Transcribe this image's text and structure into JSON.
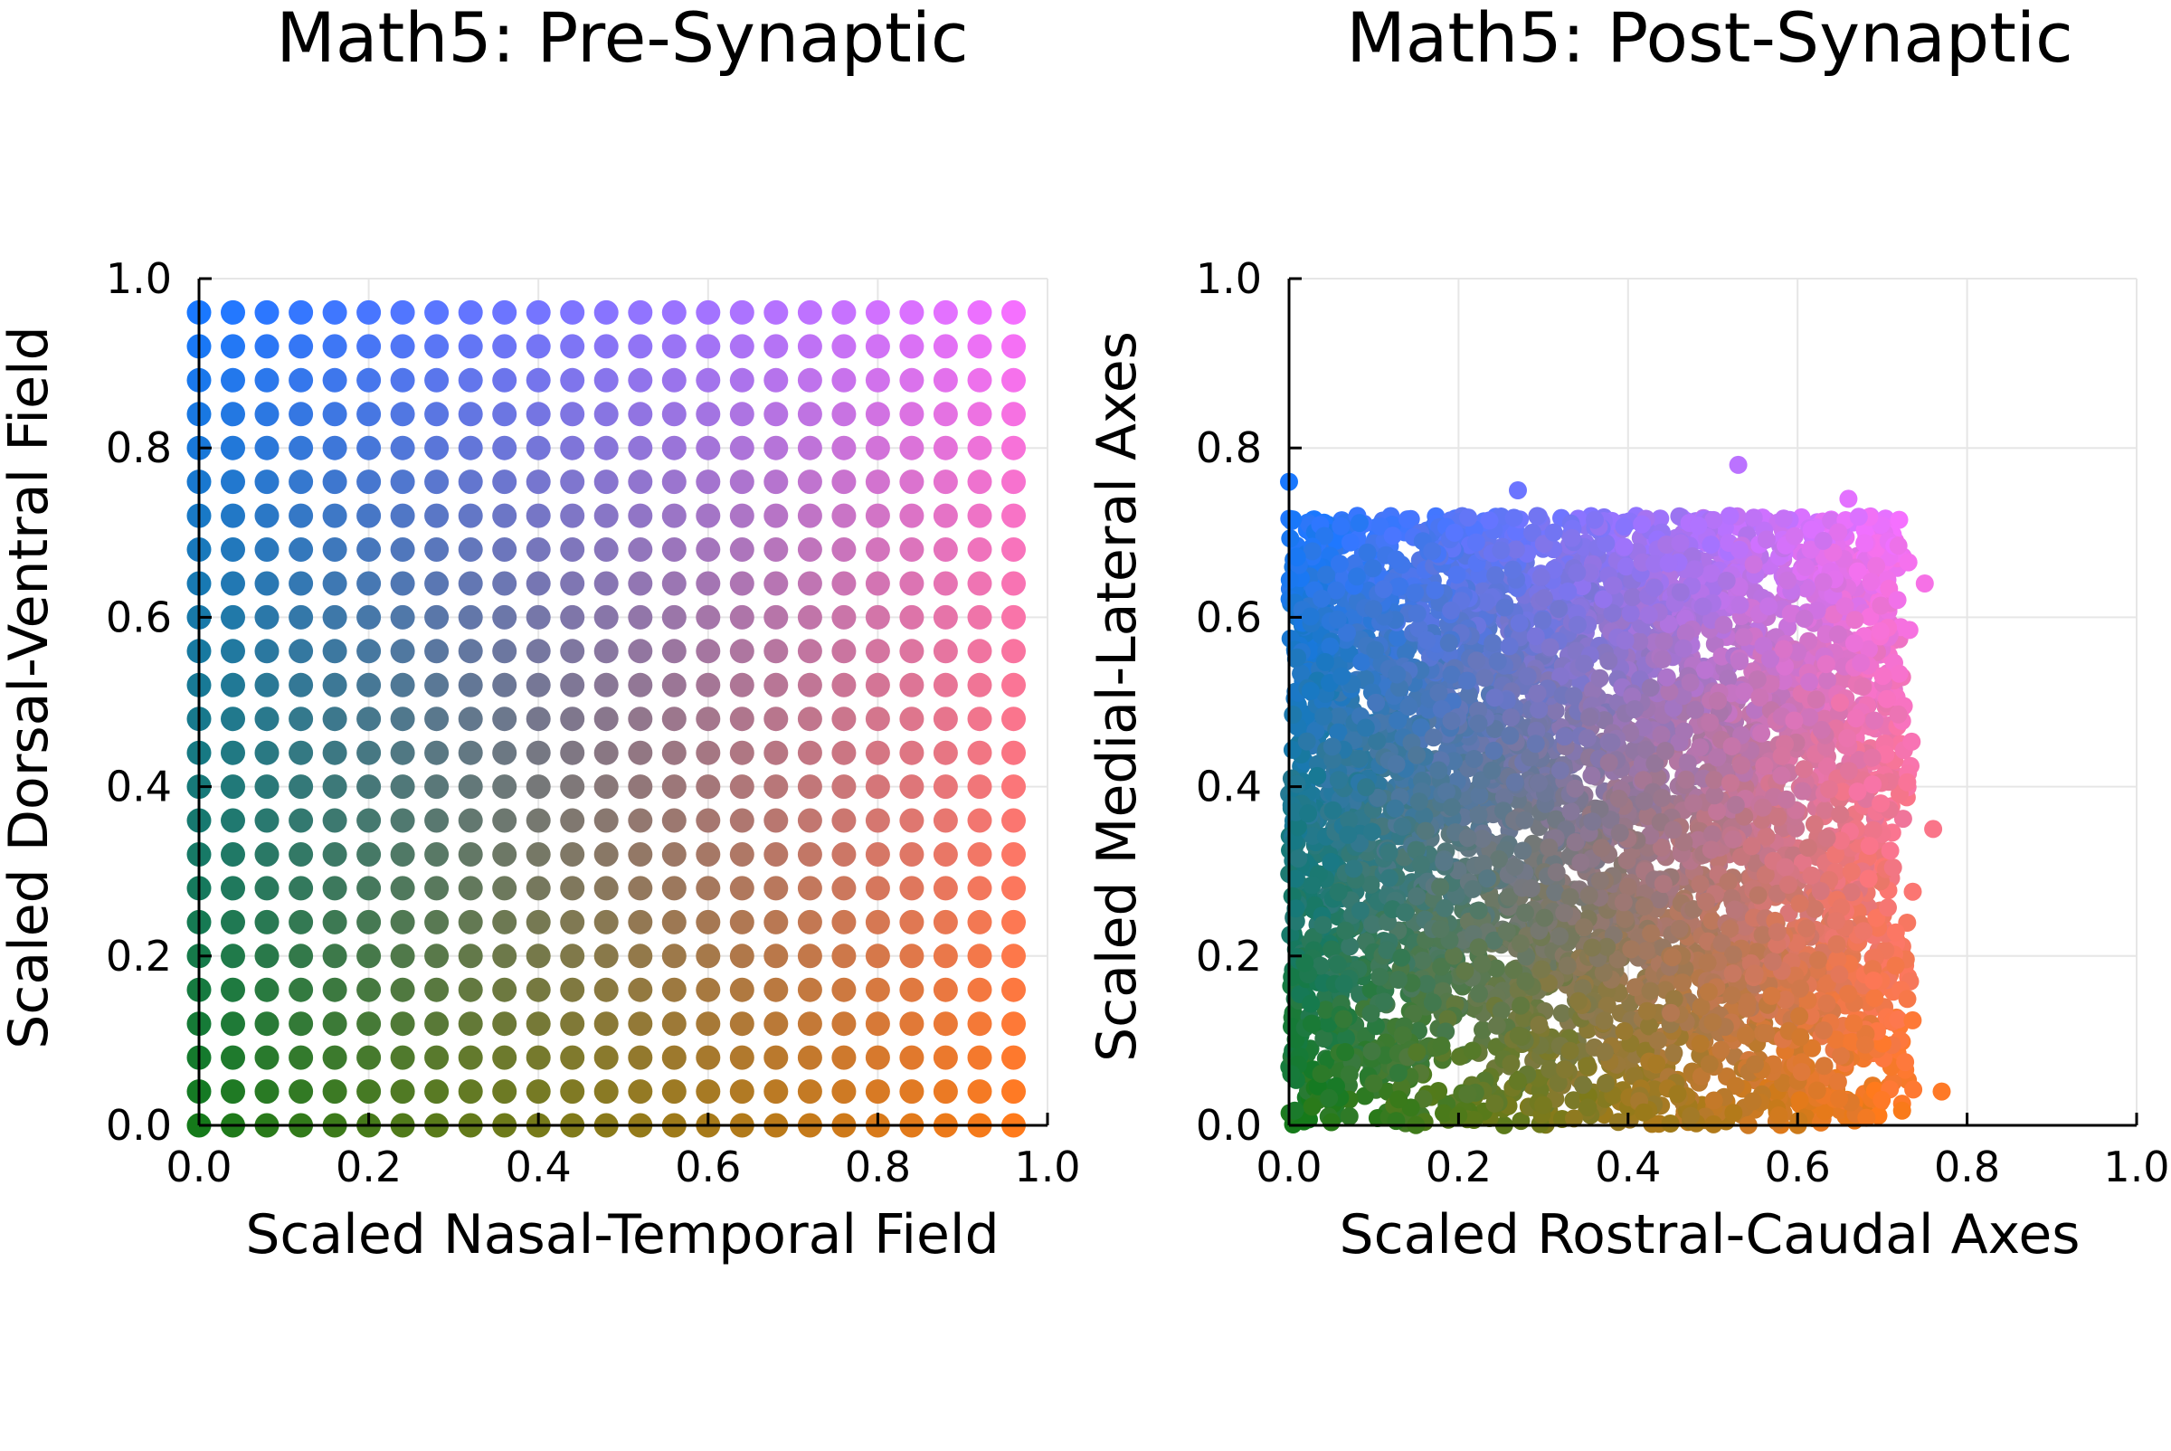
{
  "chart_data": [
    {
      "type": "scatter",
      "title": "Math5: Pre-Synaptic",
      "xlabel": "Scaled Nasal-Temporal Field",
      "ylabel": "Scaled Dorsal-Ventral Field",
      "xlim": [
        0,
        1
      ],
      "ylim": [
        0,
        1
      ],
      "xticks": [
        "0.0",
        "0.2",
        "0.4",
        "0.6",
        "0.8",
        "1.0"
      ],
      "yticks": [
        "0.0",
        "0.2",
        "0.4",
        "0.6",
        "0.8",
        "1.0"
      ],
      "grid": true,
      "legend": "none",
      "point_layout": "regular grid",
      "grid_points": {
        "start": 0.0,
        "step": 0.04,
        "count": 25
      },
      "color_encoding": "x maps green to orange (bottom) and blue to magenta (top)",
      "corner_colors": {
        "bottom_left": "#157a1a",
        "bottom_right": "#ff7a1a",
        "top_left": "#1a78ff",
        "top_right": "#f570ff"
      }
    },
    {
      "type": "scatter",
      "title": "Math5: Post-Synaptic",
      "xlabel": "Scaled Rostral-Caudal Axes",
      "ylabel": "Scaled Medial-Lateral Axes",
      "xlim": [
        0,
        1
      ],
      "ylim": [
        0,
        1
      ],
      "xticks": [
        "0.0",
        "0.2",
        "0.4",
        "0.6",
        "0.8",
        "1.0"
      ],
      "yticks": [
        "0.0",
        "0.2",
        "0.4",
        "0.6",
        "0.8",
        "1.0"
      ],
      "grid": true,
      "legend": "none",
      "point_layout": "dense cloud",
      "approx_point_count": 5000,
      "x_range": [
        0.0,
        0.77
      ],
      "y_range": [
        0.0,
        0.78
      ],
      "color_encoding": "same colormap as pre-synaptic",
      "outliers": [
        {
          "x": 0.53,
          "y": 0.78
        },
        {
          "x": 0.0,
          "y": 0.76
        },
        {
          "x": 0.27,
          "y": 0.75
        },
        {
          "x": 0.66,
          "y": 0.74
        },
        {
          "x": 0.75,
          "y": 0.64
        },
        {
          "x": 0.76,
          "y": 0.35
        },
        {
          "x": 0.77,
          "y": 0.04
        }
      ]
    }
  ]
}
